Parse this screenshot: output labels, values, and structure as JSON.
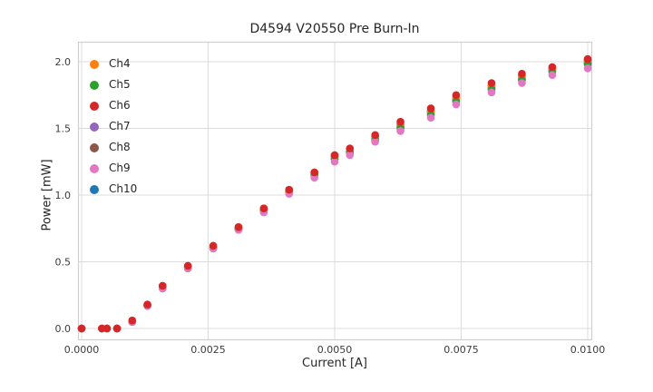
{
  "chart_data": {
    "type": "scatter",
    "title": "D4594 V20550 Pre Burn-In",
    "xlabel": "Current [A]",
    "ylabel": "Power [mW]",
    "xlim": [
      0.0,
      0.01
    ],
    "ylim": [
      0.0,
      2.0
    ],
    "grid": true,
    "legend_position": "upper left",
    "marker_radius": 4.3,
    "grid_color": "#dcdcdc",
    "border_color": "#cfcfcf",
    "x_ticks": [
      "0.0000",
      "0.0025",
      "0.0050",
      "0.0075",
      "0.0100"
    ],
    "y_ticks": [
      "0.0",
      "0.5",
      "1.0",
      "1.5",
      "2.0"
    ],
    "x": [
      0.0,
      0.0004,
      0.0005,
      0.0007,
      0.001,
      0.0013,
      0.0016,
      0.0021,
      0.0026,
      0.0031,
      0.0036,
      0.0041,
      0.0046,
      0.005,
      0.0053,
      0.0058,
      0.0063,
      0.0069,
      0.0074,
      0.0081,
      0.0087,
      0.0093,
      0.01
    ],
    "series": [
      {
        "name": "Ch4",
        "color": "#ff7f0e",
        "y": [
          0.0,
          0.0,
          0.0,
          0.0,
          0.05,
          0.17,
          0.31,
          0.46,
          0.61,
          0.76,
          0.9,
          1.04,
          1.17,
          1.29,
          1.34,
          1.44,
          1.53,
          1.63,
          1.73,
          1.82,
          1.89,
          1.95,
          2.01
        ]
      },
      {
        "name": "Ch5",
        "color": "#2ca02c",
        "y": [
          0.0,
          0.0,
          0.0,
          0.0,
          0.05,
          0.17,
          0.3,
          0.45,
          0.6,
          0.74,
          0.88,
          1.02,
          1.15,
          1.27,
          1.32,
          1.41,
          1.5,
          1.6,
          1.7,
          1.79,
          1.86,
          1.92,
          1.98
        ]
      },
      {
        "name": "Ch6",
        "color": "#d62728",
        "y": [
          0.0,
          0.0,
          0.0,
          0.0,
          0.06,
          0.18,
          0.32,
          0.47,
          0.62,
          0.76,
          0.9,
          1.04,
          1.17,
          1.3,
          1.35,
          1.45,
          1.55,
          1.65,
          1.75,
          1.84,
          1.91,
          1.96,
          2.02
        ]
      },
      {
        "name": "Ch7",
        "color": "#9467bd",
        "y": [
          0.0,
          0.0,
          0.0,
          0.0,
          0.05,
          0.17,
          0.31,
          0.46,
          0.61,
          0.75,
          0.89,
          1.03,
          1.16,
          1.28,
          1.33,
          1.43,
          1.52,
          1.62,
          1.72,
          1.81,
          1.88,
          1.94,
          2.0
        ]
      },
      {
        "name": "Ch8",
        "color": "#8c564b",
        "y": [
          0.0,
          0.0,
          0.0,
          0.0,
          0.05,
          0.17,
          0.31,
          0.46,
          0.61,
          0.76,
          0.9,
          1.04,
          1.17,
          1.29,
          1.34,
          1.44,
          1.53,
          1.63,
          1.73,
          1.82,
          1.9,
          1.95,
          2.01
        ]
      },
      {
        "name": "Ch9",
        "color": "#e377c2",
        "y": [
          0.0,
          0.0,
          0.0,
          0.0,
          0.05,
          0.17,
          0.3,
          0.45,
          0.6,
          0.74,
          0.87,
          1.01,
          1.13,
          1.25,
          1.3,
          1.4,
          1.48,
          1.58,
          1.68,
          1.77,
          1.84,
          1.9,
          1.95
        ]
      },
      {
        "name": "Ch10",
        "color": "#1f77b4",
        "y": [
          0.0,
          0.0,
          0.0,
          0.0,
          0.05,
          0.17,
          0.31,
          0.46,
          0.6,
          0.75,
          0.89,
          1.02,
          1.15,
          1.27,
          1.32,
          1.42,
          1.51,
          1.61,
          1.71,
          1.8,
          1.87,
          1.93,
          1.99
        ]
      }
    ],
    "draw_order": [
      "Ch10",
      "Ch7",
      "Ch8",
      "Ch4",
      "Ch5",
      "Ch9",
      "Ch6"
    ]
  }
}
